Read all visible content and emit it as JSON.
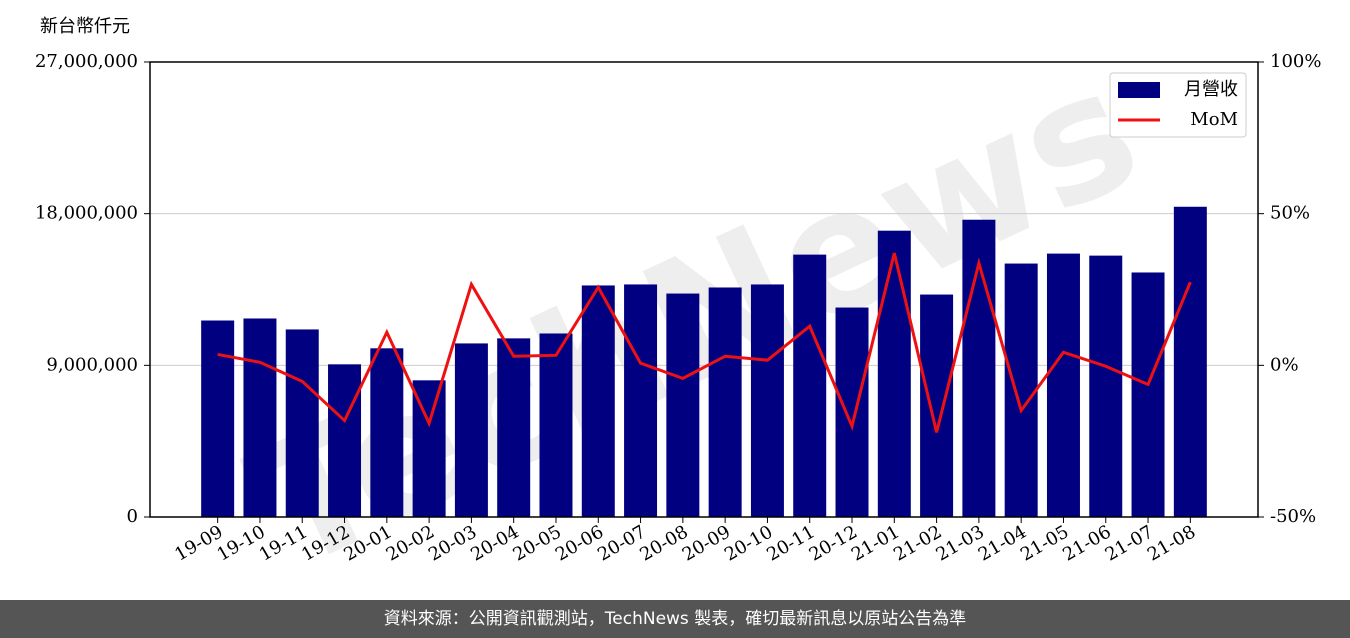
{
  "chart_data": {
    "type": "bar",
    "y_unit_label": "新台幣仟元",
    "watermark": "TechNews",
    "footer": "資料來源：公開資訊觀測站，TechNews 製表，確切最新訊息以原站公告為準",
    "categories": [
      "19-09",
      "19-10",
      "19-11",
      "19-12",
      "20-01",
      "20-02",
      "20-03",
      "20-04",
      "20-05",
      "20-06",
      "20-07",
      "20-08",
      "20-09",
      "20-10",
      "20-11",
      "20-12",
      "21-01",
      "21-02",
      "21-03",
      "21-04",
      "21-05",
      "21-06",
      "21-07",
      "21-08"
    ],
    "series": [
      {
        "name": "月營收",
        "type": "bar",
        "color": "#000080",
        "values": [
          11660000,
          11780000,
          11130000,
          9060000,
          10010000,
          8110000,
          10300000,
          10600000,
          10890000,
          13740000,
          13800000,
          13260000,
          13620000,
          13800000,
          15570000,
          12430000,
          16990000,
          13200000,
          17640000,
          15040000,
          15630000,
          15510000,
          14510000,
          18410000
        ]
      },
      {
        "name": "MoM",
        "type": "line",
        "axis": "y2",
        "color": "#ee1111",
        "values": [
          3.6,
          1.0,
          -5.3,
          -18.2,
          10.9,
          -19.1,
          26.7,
          3.0,
          3.3,
          25.7,
          0.7,
          -4.3,
          3.0,
          1.7,
          12.9,
          -20.1,
          37.0,
          -22.1,
          33.7,
          -14.9,
          4.3,
          -0.3,
          -6.3,
          27.4
        ]
      }
    ],
    "ylim": [
      0,
      27000000
    ],
    "yticks": [
      0,
      {
        "value": 9000000,
        "label": "9,000,000"
      },
      {
        "value": 18000000,
        "label": "18,000,000"
      },
      {
        "value": 27000000,
        "label": "27,000,000"
      }
    ],
    "y2lim": [
      -50,
      100
    ],
    "y2ticks": [
      {
        "value": -50,
        "label": "-50%"
      },
      {
        "value": 0,
        "label": "0%"
      },
      {
        "value": 50,
        "label": "50%"
      },
      {
        "value": 100,
        "label": "100%"
      }
    ],
    "grid": true,
    "legend": "upper right"
  }
}
